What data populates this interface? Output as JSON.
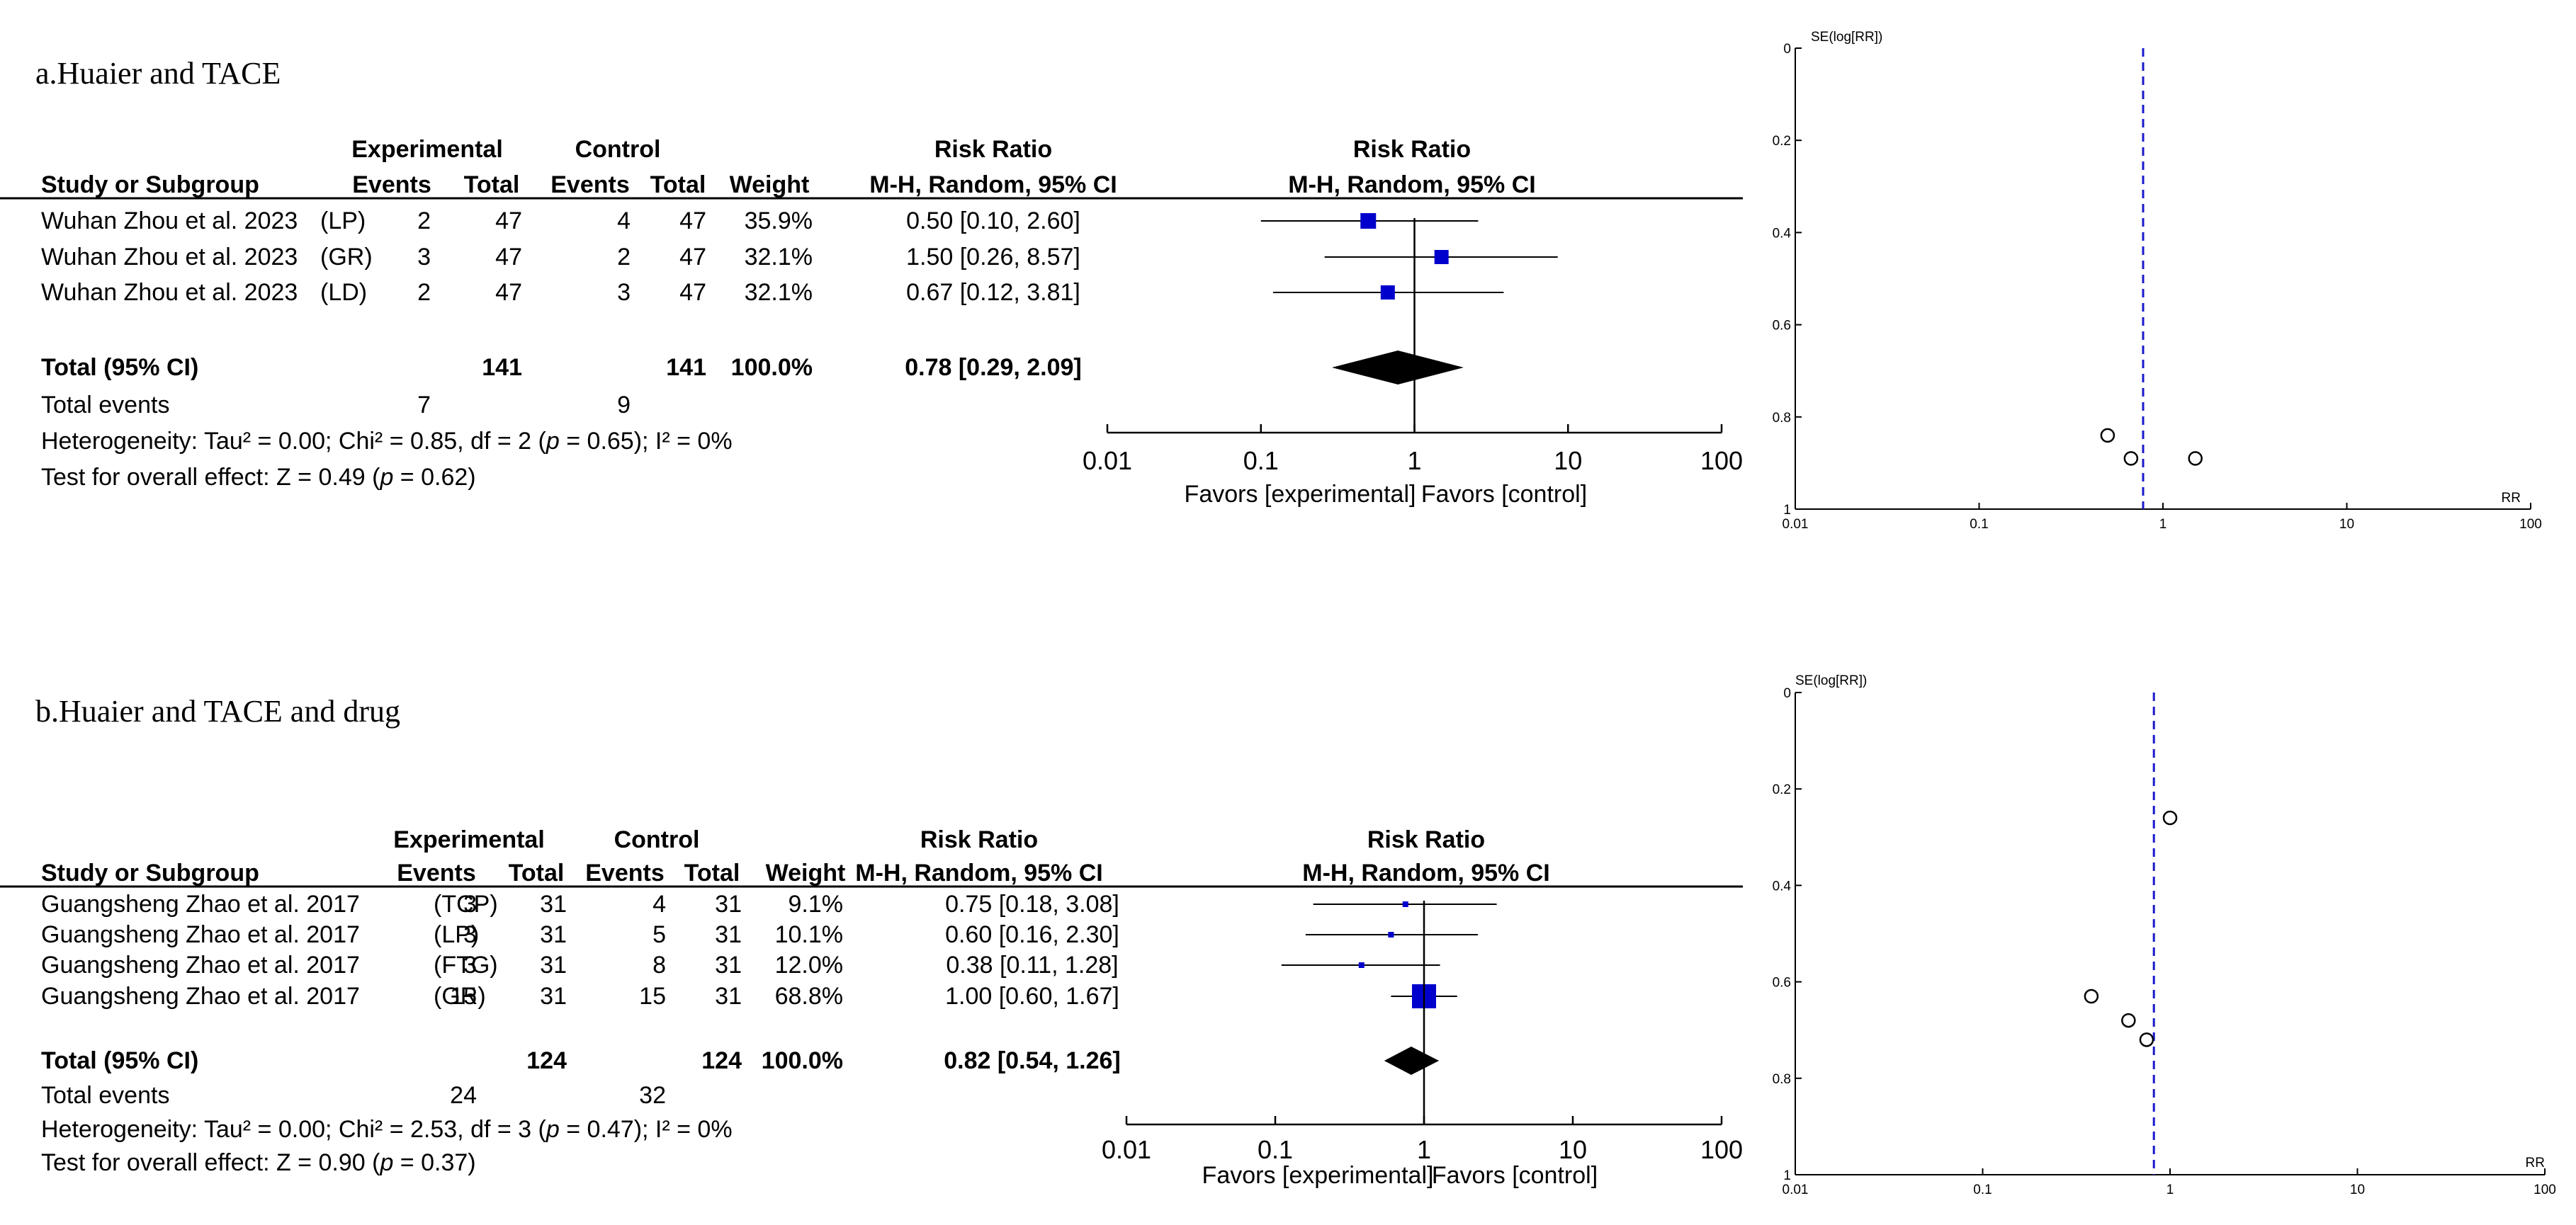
{
  "colors": {
    "marker": "#0000cc",
    "ink": "#000000",
    "dashed_line": "#1a1acc"
  },
  "chart_data": [
    {
      "type": "forest",
      "title": "a.Huaier and TACE",
      "headers": {
        "study": "Study or Subgroup",
        "experimental": "Experimental",
        "control": "Control",
        "events": "Events",
        "total": "Total",
        "weight": "Weight",
        "risk_ratio": "Risk Ratio",
        "method": "M-H, Random, 95% CI"
      },
      "studies": [
        {
          "name": "Wuhan Zhou et al. 2023",
          "subgroup": "(LP)",
          "exp_events": 2,
          "exp_total": 47,
          "ctrl_events": 4,
          "ctrl_total": 47,
          "weight": "35.9%",
          "ci_text": "0.50 [0.10, 2.60]",
          "rr": 0.5,
          "lower": 0.1,
          "upper": 2.6
        },
        {
          "name": "Wuhan Zhou et al. 2023",
          "subgroup": "(GR)",
          "exp_events": 3,
          "exp_total": 47,
          "ctrl_events": 2,
          "ctrl_total": 47,
          "weight": "32.1%",
          "ci_text": "1.50 [0.26, 8.57]",
          "rr": 1.5,
          "lower": 0.26,
          "upper": 8.57
        },
        {
          "name": "Wuhan Zhou et al. 2023",
          "subgroup": "(LD)",
          "exp_events": 2,
          "exp_total": 47,
          "ctrl_events": 3,
          "ctrl_total": 47,
          "weight": "32.1%",
          "ci_text": "0.67 [0.12, 3.81]",
          "rr": 0.67,
          "lower": 0.12,
          "upper": 3.81
        }
      ],
      "total": {
        "label": "Total (95% CI)",
        "exp_total": 141,
        "ctrl_total": 141,
        "weight": "100.0%",
        "ci_text": "0.78 [0.29, 2.09]",
        "rr": 0.78,
        "lower": 0.29,
        "upper": 2.09
      },
      "total_events": {
        "label": "Total events",
        "exp": 7,
        "ctrl": 9
      },
      "heterogeneity": {
        "prefix": "Heterogeneity: Tau² = 0.00; Chi² = 0.85, df = 2 (",
        "p": "p",
        "suffix": " = 0.65); I² = 0%"
      },
      "overall_effect": {
        "prefix": "Test for overall effect: Z = 0.49 (",
        "p": "p",
        "suffix": " = 0.62)"
      },
      "axis": {
        "ticks": [
          "0.01",
          "0.1",
          "1",
          "10",
          "100"
        ],
        "tick_values": [
          0.01,
          0.1,
          1,
          10,
          100
        ],
        "scale": "log",
        "left_label": "Favors [experimental]",
        "right_label": "Favors [control]"
      },
      "funnel": {
        "ylabel": "SE(log[RR])",
        "xlabel": "RR",
        "x_ticks": [
          "0.01",
          "0.1",
          "1",
          "10",
          "100"
        ],
        "x_tick_values": [
          0.01,
          0.1,
          1,
          10,
          100
        ],
        "y_ticks": [
          "0",
          "0.2",
          "0.4",
          "0.6",
          "0.8",
          "1"
        ],
        "y_tick_values": [
          0,
          0.2,
          0.4,
          0.6,
          0.8,
          1
        ],
        "pooled_rr": 0.78,
        "points": [
          {
            "rr": 0.5,
            "se": 0.84
          },
          {
            "rr": 0.67,
            "se": 0.89
          },
          {
            "rr": 1.5,
            "se": 0.89
          }
        ]
      }
    },
    {
      "type": "forest",
      "title": "b.Huaier and TACE and drug",
      "headers": {
        "study": "Study or Subgroup",
        "experimental": "Experimental",
        "control": "Control",
        "events": "Events",
        "total": "Total",
        "weight": "Weight",
        "risk_ratio": "Risk Ratio",
        "method": "M-H, Random, 95% CI"
      },
      "studies": [
        {
          "name": "Guangsheng Zhao et al. 2017",
          "subgroup": "(TCP)",
          "exp_events": 3,
          "exp_total": 31,
          "ctrl_events": 4,
          "ctrl_total": 31,
          "weight": "9.1%",
          "ci_text": "0.75 [0.18, 3.08]",
          "rr": 0.75,
          "lower": 0.18,
          "upper": 3.08
        },
        {
          "name": "Guangsheng Zhao et al. 2017",
          "subgroup": "(LP)",
          "exp_events": 3,
          "exp_total": 31,
          "ctrl_events": 5,
          "ctrl_total": 31,
          "weight": "10.1%",
          "ci_text": "0.60 [0.16, 2.30]",
          "rr": 0.6,
          "lower": 0.16,
          "upper": 2.3
        },
        {
          "name": "Guangsheng Zhao et al. 2017",
          "subgroup": "(FTG)",
          "exp_events": 3,
          "exp_total": 31,
          "ctrl_events": 8,
          "ctrl_total": 31,
          "weight": "12.0%",
          "ci_text": "0.38 [0.11, 1.28]",
          "rr": 0.38,
          "lower": 0.11,
          "upper": 1.28
        },
        {
          "name": "Guangsheng Zhao et al. 2017",
          "subgroup": "(GR)",
          "exp_events": 15,
          "exp_total": 31,
          "ctrl_events": 15,
          "ctrl_total": 31,
          "weight": "68.8%",
          "ci_text": "1.00 [0.60, 1.67]",
          "rr": 1.0,
          "lower": 0.6,
          "upper": 1.67
        }
      ],
      "total": {
        "label": "Total (95% CI)",
        "exp_total": 124,
        "ctrl_total": 124,
        "weight": "100.0%",
        "ci_text": "0.82 [0.54, 1.26]",
        "rr": 0.82,
        "lower": 0.54,
        "upper": 1.26
      },
      "total_events": {
        "label": "Total events",
        "exp": 24,
        "ctrl": 32
      },
      "heterogeneity": {
        "prefix": "Heterogeneity: Tau² = 0.00; Chi² = 2.53, df = 3 (",
        "p": "p",
        "suffix": " = 0.47); I² = 0%"
      },
      "overall_effect": {
        "prefix": "Test for overall effect: Z = 0.90 (",
        "p": "p",
        "suffix": " = 0.37)"
      },
      "axis": {
        "ticks": [
          "0.01",
          "0.1",
          "1",
          "10",
          "100"
        ],
        "tick_values": [
          0.01,
          0.1,
          1,
          10,
          100
        ],
        "scale": "log",
        "left_label": "Favors [experimental]",
        "right_label": "Favors [control]"
      },
      "funnel": {
        "ylabel": "SE(log[RR])",
        "xlabel": "RR",
        "x_ticks": [
          "0.01",
          "0.1",
          "1",
          "10",
          "100"
        ],
        "x_tick_values": [
          0.01,
          0.1,
          1,
          10,
          100
        ],
        "y_ticks": [
          "0",
          "0.2",
          "0.4",
          "0.6",
          "0.8",
          "1"
        ],
        "y_tick_values": [
          0,
          0.2,
          0.4,
          0.6,
          0.8,
          1
        ],
        "pooled_rr": 0.82,
        "points": [
          {
            "rr": 1.0,
            "se": 0.26
          },
          {
            "rr": 0.38,
            "se": 0.63
          },
          {
            "rr": 0.6,
            "se": 0.68
          },
          {
            "rr": 0.75,
            "se": 0.72
          }
        ]
      }
    }
  ]
}
